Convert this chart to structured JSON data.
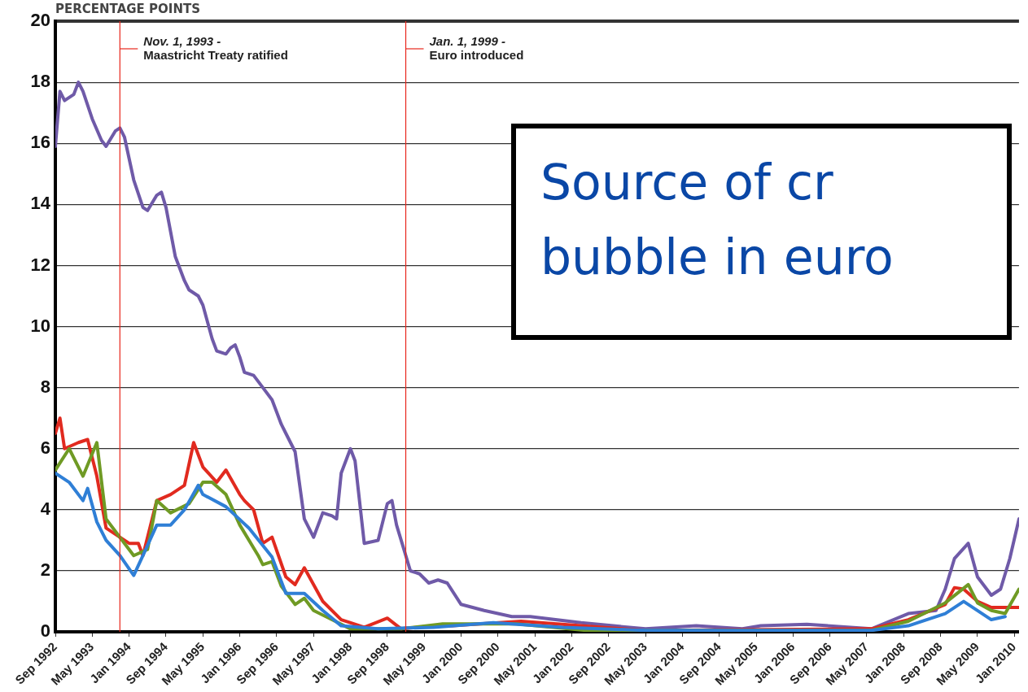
{
  "chart_data": {
    "type": "line",
    "ylabel": "PERCENTAGE POINTS",
    "xlim": [
      "1992-09",
      "2010-02"
    ],
    "xticks": [
      {
        "value": "1992-09",
        "label": "Sep 1992"
      },
      {
        "value": "1993-05",
        "label": "May 1993"
      },
      {
        "value": "1994-01",
        "label": "Jan 1994"
      },
      {
        "value": "1994-09",
        "label": "Sep 1994"
      },
      {
        "value": "1995-05",
        "label": "May 1995"
      },
      {
        "value": "1996-01",
        "label": "Jan 1996"
      },
      {
        "value": "1996-09",
        "label": "Sep 1996"
      },
      {
        "value": "1997-05",
        "label": "May 1997"
      },
      {
        "value": "1998-01",
        "label": "Jan 1998"
      },
      {
        "value": "1998-09",
        "label": "Sep 1998"
      },
      {
        "value": "1999-05",
        "label": "May 1999"
      },
      {
        "value": "2000-01",
        "label": "Jan 2000"
      },
      {
        "value": "2000-09",
        "label": "Sep 2000"
      },
      {
        "value": "2001-05",
        "label": "May 2001"
      },
      {
        "value": "2002-01",
        "label": "Jan 2002"
      },
      {
        "value": "2002-09",
        "label": "Sep 2002"
      },
      {
        "value": "2003-05",
        "label": "May 2003"
      },
      {
        "value": "2004-01",
        "label": "Jan 2004"
      },
      {
        "value": "2004-09",
        "label": "Sep 2004"
      },
      {
        "value": "2005-05",
        "label": "May 2005"
      },
      {
        "value": "2006-01",
        "label": "Jan 2006"
      },
      {
        "value": "2006-09",
        "label": "Sep 2006"
      },
      {
        "value": "2007-05",
        "label": "May 2007"
      },
      {
        "value": "2008-01",
        "label": "Jan 2008"
      },
      {
        "value": "2008-09",
        "label": "Sep 2008"
      },
      {
        "value": "2009-05",
        "label": "May 2009"
      },
      {
        "value": "2010-01",
        "label": "Jan 2010"
      }
    ],
    "ylim": [
      0,
      20
    ],
    "yticks": [
      0,
      2,
      4,
      6,
      8,
      10,
      12,
      14,
      16,
      18,
      20
    ],
    "grid": "y",
    "legend": false,
    "marker": "none",
    "line_style": "solid",
    "ref_lines": [
      {
        "axis": "x",
        "value": "1993-11-01",
        "label": "Nov. 1, 1993 -\nMaastricht Treaty ratified",
        "color": "#e8251b"
      },
      {
        "axis": "x",
        "value": "1999-01-01",
        "label": "Jan. 1, 1999 -\nEuro introduced",
        "color": "#e8251b"
      }
    ],
    "annotations": [
      "Source of cr\nbubble in euro"
    ],
    "series": [
      {
        "color": "#2f7fd6",
        "x": [
          "1992-09",
          "1992-12",
          "1993-03",
          "1993-04",
          "1993-06",
          "1993-08",
          "1993-11",
          "1994-02",
          "1994-04",
          "1994-07",
          "1994-10",
          "1995-01",
          "1995-04",
          "1995-05",
          "1995-10",
          "1996-03",
          "1996-08",
          "1996-11",
          "1997-03",
          "1997-07",
          "1997-11",
          "1998-07",
          "1999-07",
          "2000-08",
          "2001-11",
          "2003-05",
          "2007-06",
          "2008-02",
          "2008-10",
          "2009-02",
          "2009-05",
          "2009-08",
          "2009-11"
        ],
        "values": [
          5.2,
          4.9,
          4.3,
          4.7,
          3.6,
          3.0,
          2.5,
          1.85,
          2.5,
          3.5,
          3.5,
          4.0,
          4.8,
          4.5,
          4.1,
          3.4,
          2.45,
          1.26,
          1.26,
          0.7,
          0.2,
          0.1,
          0.15,
          0.3,
          0.15,
          0.05,
          0.05,
          0.2,
          0.6,
          1.0,
          0.7,
          0.4,
          0.5
        ]
      },
      {
        "color": "#6f9a24",
        "x": [
          "1992-09",
          "1992-12",
          "1993-03",
          "1993-06",
          "1993-08",
          "1993-11",
          "1994-02",
          "1994-05",
          "1994-07",
          "1994-10",
          "1995-02",
          "1995-05",
          "1995-07",
          "1995-10",
          "1996-01",
          "1996-05",
          "1996-06",
          "1996-08",
          "1996-10",
          "1997-01",
          "1997-03",
          "1997-05",
          "1997-09",
          "1998-01",
          "1998-12",
          "1999-09",
          "2001-01",
          "2002-04",
          "2007-06",
          "2008-02",
          "2008-10",
          "2009-03",
          "2009-05",
          "2009-08",
          "2009-11",
          "2010-02"
        ],
        "values": [
          5.3,
          6.0,
          5.1,
          6.2,
          3.7,
          3.1,
          2.5,
          2.7,
          4.3,
          3.9,
          4.2,
          4.9,
          4.9,
          4.5,
          3.5,
          2.5,
          2.2,
          2.3,
          1.5,
          0.9,
          1.1,
          0.7,
          0.4,
          0.1,
          0.1,
          0.26,
          0.26,
          0.05,
          0.05,
          0.35,
          0.95,
          1.55,
          0.95,
          0.7,
          0.6,
          1.4
        ]
      },
      {
        "color": "#e12a1f",
        "x": [
          "1992-09",
          "1992-10",
          "1992-11",
          "1993-02",
          "1993-04",
          "1993-06",
          "1993-08",
          "1993-11",
          "1994-01",
          "1994-03",
          "1994-04",
          "1994-07",
          "1994-10",
          "1995-01",
          "1995-03",
          "1995-05",
          "1995-08",
          "1995-10",
          "1996-01",
          "1996-02",
          "1996-04",
          "1996-06",
          "1996-08",
          "1996-11",
          "1997-01",
          "1997-03",
          "1997-07",
          "1997-11",
          "1998-04",
          "1998-09",
          "1998-12",
          "1999-07",
          "1999-11",
          "2001-02",
          "2002-03",
          "2003-05",
          "2007-06",
          "2008-02",
          "2008-10",
          "2008-12",
          "2009-02",
          "2009-05",
          "2009-08",
          "2010-02"
        ],
        "values": [
          6.5,
          7.0,
          6.0,
          6.2,
          6.3,
          5.1,
          3.4,
          3.1,
          2.9,
          2.9,
          2.5,
          4.3,
          4.5,
          4.8,
          6.2,
          5.4,
          4.9,
          5.3,
          4.5,
          4.3,
          4.0,
          2.9,
          3.1,
          1.8,
          1.55,
          2.1,
          1.0,
          0.4,
          0.15,
          0.45,
          0.1,
          0.2,
          0.2,
          0.35,
          0.2,
          0.05,
          0.1,
          0.4,
          0.9,
          1.45,
          1.4,
          1.0,
          0.8,
          0.8
        ]
      },
      {
        "color": "#6f5aa8",
        "x": [
          "1992-09",
          "1992-10",
          "1992-11",
          "1993-01",
          "1993-02",
          "1993-03",
          "1993-05",
          "1993-07",
          "1993-08",
          "1993-10",
          "1993-11",
          "1993-12",
          "1994-02",
          "1994-04",
          "1994-05",
          "1994-07",
          "1994-08",
          "1994-09",
          "1994-11",
          "1995-01",
          "1995-02",
          "1995-04",
          "1995-05",
          "1995-07",
          "1995-08",
          "1995-10",
          "1995-11",
          "1995-12",
          "1996-01",
          "1996-02",
          "1996-04",
          "1996-06",
          "1996-08",
          "1996-10",
          "1996-11",
          "1997-01",
          "1997-03",
          "1997-05",
          "1997-07",
          "1997-09",
          "1997-10",
          "1997-11",
          "1998-01",
          "1998-02",
          "1998-04",
          "1998-07",
          "1998-09",
          "1998-10",
          "1998-11",
          "1998-12",
          "1999-02",
          "1999-04",
          "1999-06",
          "1999-08",
          "1999-10",
          "2000-01",
          "2000-06",
          "2000-12",
          "2001-04",
          "2002-03",
          "2003-05",
          "2004-04",
          "2005-02",
          "2005-06",
          "2006-04",
          "2007-06",
          "2008-02",
          "2008-08",
          "2008-10",
          "2008-12",
          "2009-03",
          "2009-05",
          "2009-08",
          "2009-10",
          "2009-12",
          "2010-02"
        ],
        "values": [
          15.9,
          17.7,
          17.4,
          17.6,
          18.0,
          17.7,
          16.8,
          16.1,
          15.9,
          16.4,
          16.5,
          16.2,
          14.8,
          13.9,
          13.8,
          14.3,
          14.4,
          13.9,
          12.3,
          11.5,
          11.2,
          11.0,
          10.7,
          9.6,
          9.2,
          9.1,
          9.3,
          9.4,
          9.0,
          8.5,
          8.4,
          8.0,
          7.6,
          6.8,
          6.5,
          5.9,
          3.7,
          3.1,
          3.9,
          3.8,
          3.7,
          5.2,
          6.0,
          5.6,
          2.9,
          3.0,
          4.2,
          4.3,
          3.5,
          3.0,
          2.0,
          1.9,
          1.6,
          1.7,
          1.6,
          0.9,
          0.7,
          0.5,
          0.5,
          0.3,
          0.1,
          0.2,
          0.1,
          0.2,
          0.25,
          0.1,
          0.6,
          0.7,
          1.4,
          2.4,
          2.9,
          1.8,
          1.2,
          1.4,
          2.4,
          3.7
        ]
      }
    ]
  }
}
